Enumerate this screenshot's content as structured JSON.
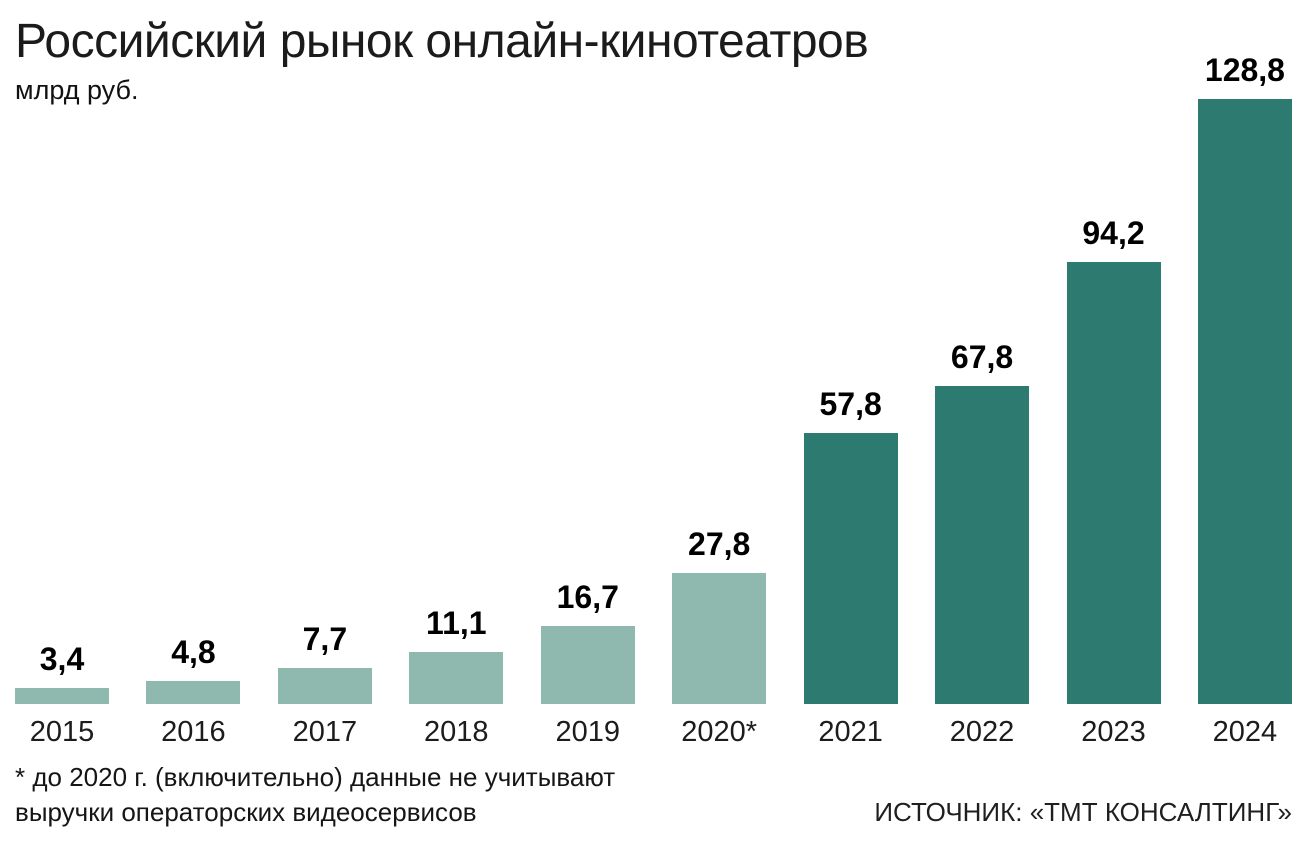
{
  "header": {
    "title": "Российский рынок онлайн-кинотеатров",
    "subtitle": "млрд руб."
  },
  "chart_data": {
    "type": "bar",
    "title": "Российский рынок онлайн-кинотеатров",
    "ylabel": "млрд руб.",
    "categories": [
      "2015",
      "2016",
      "2017",
      "2018",
      "2019",
      "2020*",
      "2021",
      "2022",
      "2023",
      "2024"
    ],
    "values": [
      3.4,
      4.8,
      7.7,
      11.1,
      16.7,
      27.8,
      57.8,
      67.8,
      94.2,
      128.8
    ],
    "value_labels": [
      "3,4",
      "4,8",
      "7,7",
      "11,1",
      "16,7",
      "27,8",
      "57,8",
      "67,8",
      "94,2",
      "128,8"
    ],
    "ylim": [
      0,
      135
    ],
    "grid": false,
    "legend": "none",
    "series_split_index": 6,
    "colors": {
      "light_bar": "#8fb8ae",
      "dark_bar": "#2d7a71"
    }
  },
  "footer": {
    "footnote_line1": "* до 2020 г. (включительно) данные не учитывают",
    "footnote_line2": "выручки операторских видеосервисов",
    "source": "ИСТОЧНИК: «ТМТ КОНСАЛТИНГ»"
  }
}
